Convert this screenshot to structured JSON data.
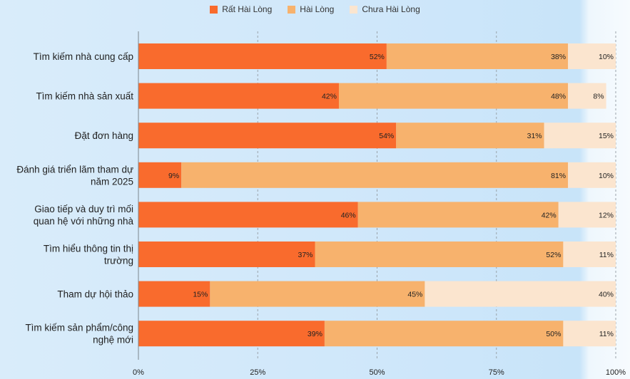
{
  "chart_data": {
    "type": "bar",
    "orientation": "horizontal",
    "stacked": true,
    "categories": [
      [
        "Tìm kiếm nhà cung cấp"
      ],
      [
        "Tìm kiếm nhà sản xuất"
      ],
      [
        "Đặt đơn hàng"
      ],
      [
        "Đánh giá triển lãm tham dự",
        "năm 2025"
      ],
      [
        "Giao tiếp và duy trì mối",
        "quan hệ với những nhà"
      ],
      [
        "Tìm hiểu thông tin thị",
        "trường"
      ],
      [
        "Tham dự hội thảo"
      ],
      [
        "Tìm kiếm sản phẩm/công",
        "nghệ mới"
      ]
    ],
    "series": [
      {
        "name": "Rất Hài Lòng",
        "color": "#f96b2d",
        "values": [
          52,
          42,
          54,
          9,
          46,
          37,
          15,
          39
        ]
      },
      {
        "name": "Hài Lòng",
        "color": "#f7b26d",
        "values": [
          38,
          48,
          31,
          81,
          42,
          52,
          45,
          50
        ]
      },
      {
        "name": "Chưa Hài Lòng",
        "color": "#fbe5cf",
        "values": [
          10,
          8,
          15,
          10,
          12,
          11,
          40,
          11
        ]
      }
    ],
    "value_suffix": "%",
    "xlim": [
      0,
      100
    ],
    "xticks": [
      "0%",
      "25%",
      "50%",
      "75%",
      "100%"
    ],
    "grid": true,
    "legend_position": "top"
  }
}
